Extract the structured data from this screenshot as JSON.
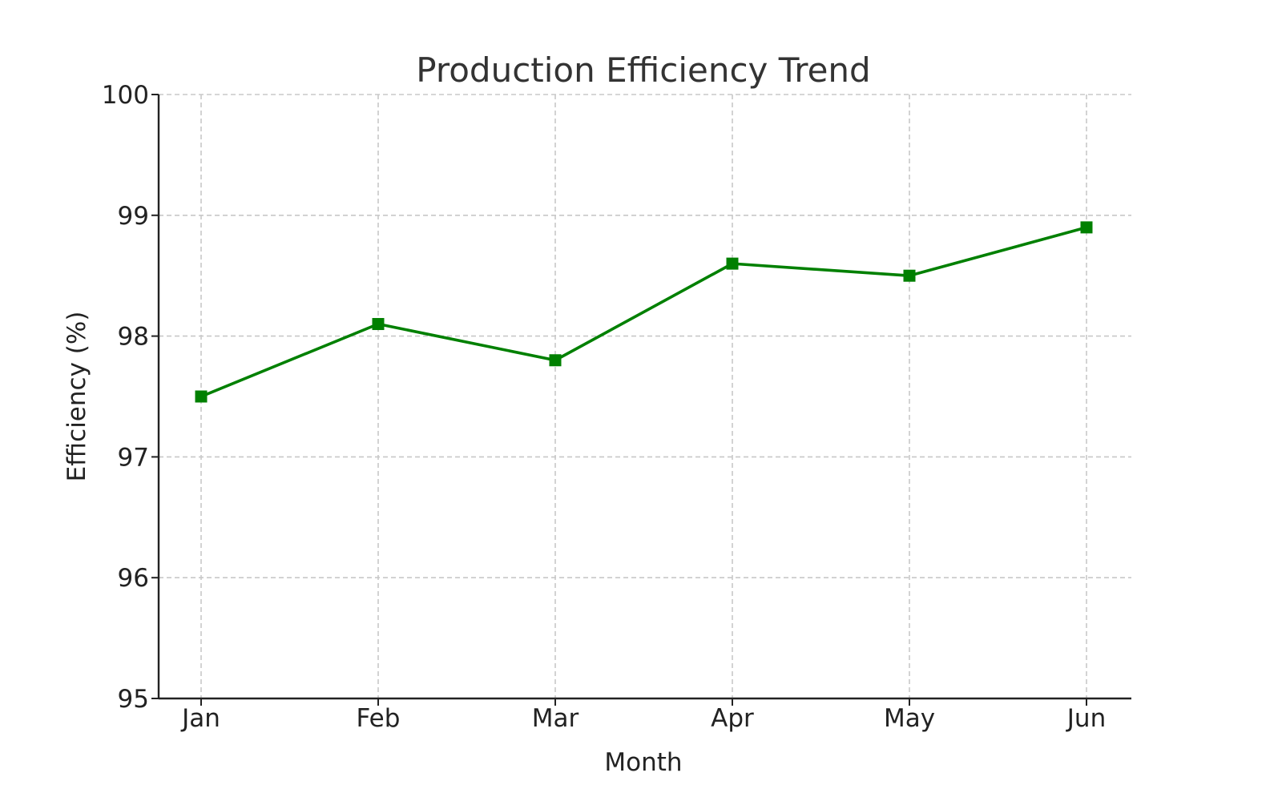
{
  "chart_data": {
    "type": "line",
    "title": "Production Efficiency Trend",
    "xlabel": "Month",
    "ylabel": "Efficiency (%)",
    "categories": [
      "Jan",
      "Feb",
      "Mar",
      "Apr",
      "May",
      "Jun"
    ],
    "series": [
      {
        "values": [
          97.5,
          98.1,
          97.8,
          98.6,
          98.5,
          98.9
        ],
        "color": "#008000",
        "marker": "square"
      }
    ],
    "ylim": [
      95,
      100
    ],
    "yticks": [
      95,
      96,
      97,
      98,
      99,
      100
    ],
    "grid": true
  }
}
